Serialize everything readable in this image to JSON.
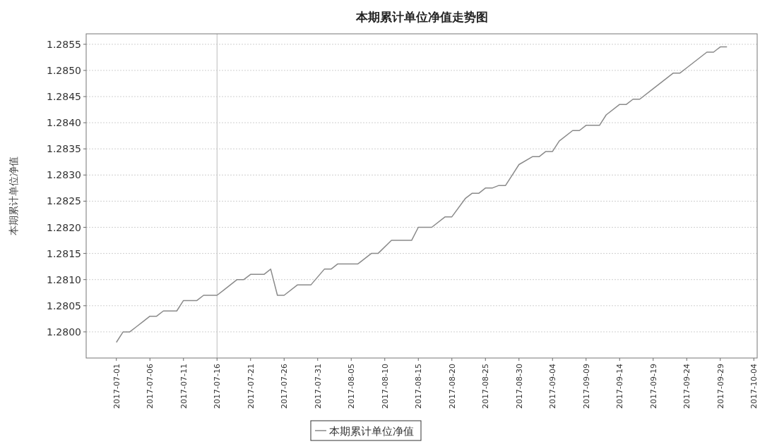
{
  "chart_data": {
    "type": "line",
    "title": "本期累计单位净值走势图",
    "ylabel": "本期累计单位净值",
    "x": [
      "2017-07-01",
      "2017-07-02",
      "2017-07-03",
      "2017-07-04",
      "2017-07-05",
      "2017-07-06",
      "2017-07-07",
      "2017-07-08",
      "2017-07-10",
      "2017-07-11",
      "2017-07-13",
      "2017-07-14",
      "2017-07-16",
      "2017-07-17",
      "2017-07-19",
      "2017-07-20",
      "2017-07-21",
      "2017-07-23",
      "2017-07-24",
      "2017-07-25",
      "2017-07-26",
      "2017-07-28",
      "2017-07-30",
      "2017-08-01",
      "2017-08-02",
      "2017-08-03",
      "2017-08-06",
      "2017-08-08",
      "2017-08-09",
      "2017-08-11",
      "2017-08-14",
      "2017-08-15",
      "2017-08-17",
      "2017-08-19",
      "2017-08-20",
      "2017-08-22",
      "2017-08-23",
      "2017-08-24",
      "2017-08-25",
      "2017-08-26",
      "2017-08-27",
      "2017-08-28",
      "2017-08-29",
      "2017-08-30",
      "2017-09-01",
      "2017-09-02",
      "2017-09-03",
      "2017-09-04",
      "2017-09-05",
      "2017-09-07",
      "2017-09-08",
      "2017-09-09",
      "2017-09-11",
      "2017-09-12",
      "2017-09-14",
      "2017-09-15",
      "2017-09-16",
      "2017-09-17",
      "2017-09-19",
      "2017-09-22",
      "2017-09-23",
      "2017-09-24",
      "2017-09-27",
      "2017-09-28",
      "2017-09-29",
      "2017-09-30"
    ],
    "series": [
      {
        "name": "本期累计单位净值",
        "color": "#8a8a8a",
        "values": [
          1.2798,
          1.28,
          1.28,
          1.2801,
          1.2802,
          1.2803,
          1.2803,
          1.2804,
          1.2804,
          1.2806,
          1.2806,
          1.2807,
          1.2807,
          1.2808,
          1.281,
          1.281,
          1.2811,
          1.2811,
          1.2812,
          1.2807,
          1.2807,
          1.2809,
          1.2809,
          1.2812,
          1.2812,
          1.2813,
          1.2813,
          1.2815,
          1.2815,
          1.28175,
          1.28175,
          1.282,
          1.282,
          1.2822,
          1.2822,
          1.28255,
          1.28265,
          1.28265,
          1.28275,
          1.28275,
          1.2828,
          1.2828,
          1.283,
          1.2832,
          1.28335,
          1.28335,
          1.28345,
          1.28345,
          1.28365,
          1.28385,
          1.28385,
          1.28395,
          1.28395,
          1.28415,
          1.28435,
          1.28435,
          1.28445,
          1.28445,
          1.28465,
          1.28495,
          1.28495,
          1.28505,
          1.28535,
          1.28535,
          1.28545,
          1.28545
        ]
      }
    ],
    "xlim": [
      "2017-06-26T12:00",
      "2017-10-04T12:00"
    ],
    "xticks": [
      "2017-07-01",
      "2017-07-06",
      "2017-07-11",
      "2017-07-16",
      "2017-07-21",
      "2017-07-26",
      "2017-07-31",
      "2017-08-05",
      "2017-08-10",
      "2017-08-15",
      "2017-08-20",
      "2017-08-25",
      "2017-08-30",
      "2017-09-04",
      "2017-09-09",
      "2017-09-14",
      "2017-09-19",
      "2017-09-24",
      "2017-09-29",
      "2017-10-04"
    ],
    "ylim": [
      1.2795,
      1.2857
    ],
    "yticks": [
      {
        "value": 1.28,
        "label": "1.2800"
      },
      {
        "value": 1.2805,
        "label": "1.2805"
      },
      {
        "value": 1.281,
        "label": "1.2810"
      },
      {
        "value": 1.2815,
        "label": "1.2815"
      },
      {
        "value": 1.282,
        "label": "1.2820"
      },
      {
        "value": 1.2825,
        "label": "1.2825"
      },
      {
        "value": 1.283,
        "label": "1.2830"
      },
      {
        "value": 1.2835,
        "label": "1.2835"
      },
      {
        "value": 1.284,
        "label": "1.2840"
      },
      {
        "value": 1.2845,
        "label": "1.2845"
      },
      {
        "value": 1.285,
        "label": "1.2850"
      },
      {
        "value": 1.2855,
        "label": "1.2855"
      }
    ],
    "grid": "y",
    "legend": "bottom",
    "line_style": "solid",
    "ref_lines": [
      {
        "axis": "x",
        "value": "2017-07-16",
        "color": "#bdbdbd"
      }
    ]
  }
}
